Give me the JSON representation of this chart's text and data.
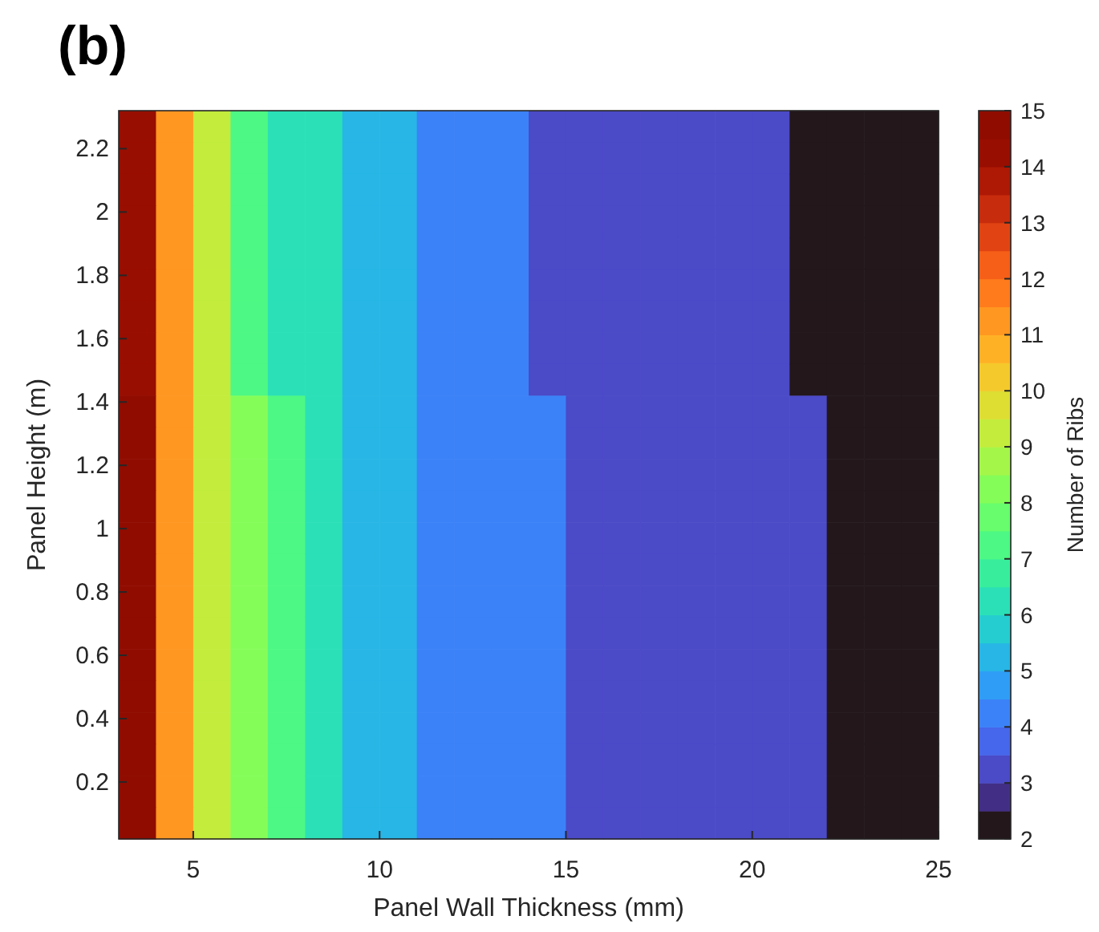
{
  "chart_data": {
    "type": "heatmap",
    "title": "(b)",
    "xlabel": "Panel Wall Thickness (mm)",
    "ylabel": "Panel Height (m)",
    "clabel": "Number of Ribs",
    "x": [
      3.5,
      4.5,
      5.5,
      6.5,
      7.5,
      8.5,
      9.5,
      10.5,
      11.5,
      12.5,
      13.5,
      14.5,
      15.5,
      16.5,
      17.5,
      18.5,
      19.5,
      20.5,
      21.5,
      22.5,
      23.5,
      24.5
    ],
    "y": [
      2.27,
      2.17,
      2.07,
      1.97,
      1.87,
      1.77,
      1.67,
      1.57,
      1.47,
      1.37,
      1.27,
      1.17,
      1.07,
      0.97,
      0.87,
      0.77,
      0.67,
      0.57,
      0.47,
      0.37,
      0.27,
      0.17,
      0.07
    ],
    "cells": [
      [
        14,
        11,
        9,
        7,
        6,
        6,
        5,
        5,
        4,
        4,
        4,
        3,
        3,
        3,
        3,
        3,
        3,
        3,
        2,
        2,
        2,
        2
      ],
      [
        14,
        11,
        9,
        7,
        6,
        6,
        5,
        5,
        4,
        4,
        4,
        3,
        3,
        3,
        3,
        3,
        3,
        3,
        2,
        2,
        2,
        2
      ],
      [
        14,
        11,
        9,
        7,
        6,
        6,
        5,
        5,
        4,
        4,
        4,
        3,
        3,
        3,
        3,
        3,
        3,
        3,
        2,
        2,
        2,
        2
      ],
      [
        14,
        11,
        9,
        7,
        6,
        6,
        5,
        5,
        4,
        4,
        4,
        3,
        3,
        3,
        3,
        3,
        3,
        3,
        2,
        2,
        2,
        2
      ],
      [
        14,
        11,
        9,
        7,
        6,
        6,
        5,
        5,
        4,
        4,
        4,
        3,
        3,
        3,
        3,
        3,
        3,
        3,
        2,
        2,
        2,
        2
      ],
      [
        14,
        11,
        9,
        7,
        6,
        6,
        5,
        5,
        4,
        4,
        4,
        3,
        3,
        3,
        3,
        3,
        3,
        3,
        2,
        2,
        2,
        2
      ],
      [
        14,
        11,
        9,
        7,
        6,
        6,
        5,
        5,
        4,
        4,
        4,
        3,
        3,
        3,
        3,
        3,
        3,
        3,
        2,
        2,
        2,
        2
      ],
      [
        14,
        11,
        9,
        7,
        6,
        6,
        5,
        5,
        4,
        4,
        4,
        3,
        3,
        3,
        3,
        3,
        3,
        3,
        2,
        2,
        2,
        2
      ],
      [
        14,
        11,
        9,
        7,
        6,
        6,
        5,
        5,
        4,
        4,
        4,
        3,
        3,
        3,
        3,
        3,
        3,
        3,
        2,
        2,
        2,
        2
      ],
      [
        15,
        11,
        9,
        8,
        7,
        6,
        5,
        5,
        4,
        4,
        4,
        4,
        3,
        3,
        3,
        3,
        3,
        3,
        3,
        2,
        2,
        2
      ],
      [
        15,
        11,
        9,
        8,
        7,
        6,
        5,
        5,
        4,
        4,
        4,
        4,
        3,
        3,
        3,
        3,
        3,
        3,
        3,
        2,
        2,
        2
      ],
      [
        15,
        11,
        9,
        8,
        7,
        6,
        5,
        5,
        4,
        4,
        4,
        4,
        3,
        3,
        3,
        3,
        3,
        3,
        3,
        2,
        2,
        2
      ],
      [
        15,
        11,
        9,
        8,
        7,
        6,
        5,
        5,
        4,
        4,
        4,
        4,
        3,
        3,
        3,
        3,
        3,
        3,
        3,
        2,
        2,
        2
      ],
      [
        15,
        11,
        9,
        8,
        7,
        6,
        5,
        5,
        4,
        4,
        4,
        4,
        3,
        3,
        3,
        3,
        3,
        3,
        3,
        2,
        2,
        2
      ],
      [
        15,
        11,
        9,
        8,
        7,
        6,
        5,
        5,
        4,
        4,
        4,
        4,
        3,
        3,
        3,
        3,
        3,
        3,
        3,
        2,
        2,
        2
      ],
      [
        15,
        11,
        9,
        8,
        7,
        6,
        5,
        5,
        4,
        4,
        4,
        4,
        3,
        3,
        3,
        3,
        3,
        3,
        3,
        2,
        2,
        2
      ],
      [
        15,
        11,
        9,
        8,
        7,
        6,
        5,
        5,
        4,
        4,
        4,
        4,
        3,
        3,
        3,
        3,
        3,
        3,
        3,
        2,
        2,
        2
      ],
      [
        15,
        11,
        9,
        8,
        7,
        6,
        5,
        5,
        4,
        4,
        4,
        4,
        3,
        3,
        3,
        3,
        3,
        3,
        3,
        2,
        2,
        2
      ],
      [
        15,
        11,
        9,
        8,
        7,
        6,
        5,
        5,
        4,
        4,
        4,
        4,
        3,
        3,
        3,
        3,
        3,
        3,
        3,
        2,
        2,
        2
      ],
      [
        15,
        11,
        9,
        8,
        7,
        6,
        5,
        5,
        4,
        4,
        4,
        4,
        3,
        3,
        3,
        3,
        3,
        3,
        3,
        2,
        2,
        2
      ],
      [
        15,
        11,
        9,
        8,
        7,
        6,
        5,
        5,
        4,
        4,
        4,
        4,
        3,
        3,
        3,
        3,
        3,
        3,
        3,
        2,
        2,
        2
      ],
      [
        15,
        11,
        9,
        8,
        7,
        6,
        5,
        5,
        4,
        4,
        4,
        4,
        3,
        3,
        3,
        3,
        3,
        3,
        3,
        2,
        2,
        2
      ],
      [
        15,
        11,
        9,
        8,
        7,
        6,
        5,
        5,
        4,
        4,
        4,
        4,
        3,
        3,
        3,
        3,
        3,
        3,
        3,
        2,
        2,
        2
      ]
    ],
    "xlim": [
      3,
      25
    ],
    "xticks": [
      5,
      10,
      15,
      20,
      25
    ],
    "ylim": [
      0.02,
      2.32
    ],
    "yticks": [
      0.2,
      0.4,
      0.6,
      0.8,
      1,
      1.2,
      1.4,
      1.6,
      1.8,
      2,
      2.2
    ],
    "clim": [
      2,
      15
    ],
    "cticks": [
      2,
      3,
      4,
      5,
      6,
      7,
      8,
      9,
      10,
      11,
      12,
      13,
      14,
      15
    ]
  }
}
